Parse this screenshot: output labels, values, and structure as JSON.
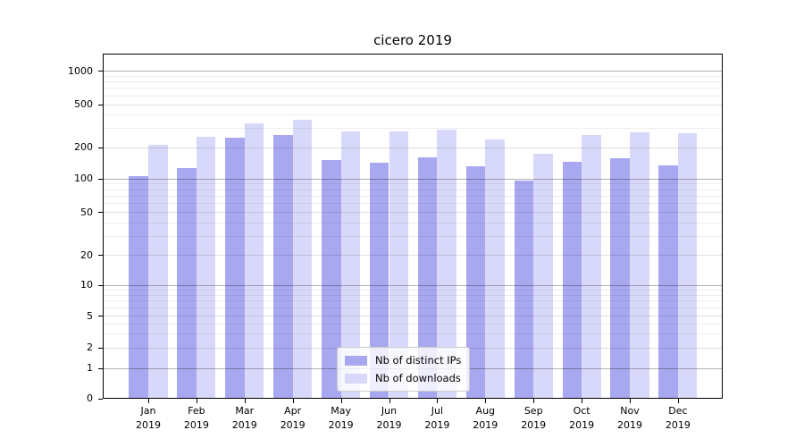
{
  "chart_data": {
    "type": "bar",
    "title": "cicero 2019",
    "categories": [
      "Jan",
      "Feb",
      "Mar",
      "Apr",
      "May",
      "Jun",
      "Jul",
      "Aug",
      "Sep",
      "Oct",
      "Nov",
      "Dec"
    ],
    "category_year": "2019",
    "series": [
      {
        "name": "Nb of distinct IPs",
        "color": "#a8a8f0",
        "values": [
          105,
          125,
          245,
          260,
          150,
          142,
          160,
          130,
          95,
          145,
          155,
          133
        ]
      },
      {
        "name": "Nb of downloads",
        "color": "#d8d8fa",
        "values": [
          210,
          248,
          330,
          355,
          280,
          280,
          292,
          235,
          172,
          260,
          275,
          268
        ]
      }
    ],
    "y_axis": {
      "scale": "symlog",
      "tick_labels": [
        "0",
        "1",
        "2",
        "5",
        "10",
        "20",
        "50",
        "100",
        "200",
        "500",
        "1000"
      ],
      "tick_values": [
        0,
        1,
        2,
        5,
        10,
        20,
        50,
        100,
        200,
        500,
        1000
      ],
      "minor_gridline_values": [
        3,
        4,
        6,
        7,
        8,
        9,
        30,
        40,
        60,
        70,
        80,
        90,
        300,
        400,
        600,
        700,
        800,
        900
      ],
      "decade_values": [
        1,
        10,
        100,
        1000
      ],
      "ylim": [
        0,
        1000
      ]
    },
    "legend": {
      "position": "lower center",
      "entries": [
        "Nb of distinct IPs",
        "Nb of downloads"
      ]
    },
    "grid": {
      "major": true,
      "minor": true,
      "over_bars": true
    }
  }
}
